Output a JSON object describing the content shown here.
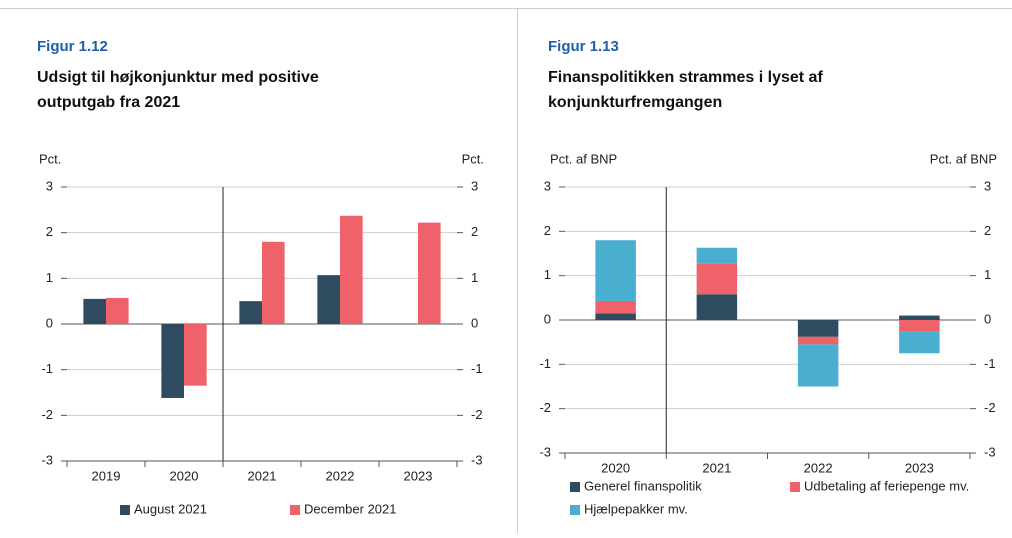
{
  "chart_data": [
    {
      "type": "bar",
      "label": "Figur 1.12",
      "title": "Udsigt til højkonjunktur med positive outputgab fra 2021",
      "ylabel": "Pct.",
      "y2label": "Pct.",
      "categories": [
        "2019",
        "2020",
        "2021",
        "2022",
        "2023"
      ],
      "series": [
        {
          "name": "August 2021",
          "color": "#2f4b5f",
          "values": [
            0.55,
            -1.62,
            0.5,
            1.07,
            null
          ]
        },
        {
          "name": "December 2021",
          "color": "#f0626a",
          "values": [
            0.57,
            -1.35,
            1.8,
            2.37,
            2.22
          ]
        }
      ],
      "ylim": [
        -3,
        3
      ],
      "yticks": [
        -3,
        -2,
        -1,
        0,
        1,
        2,
        3
      ],
      "y2lim": [
        -3,
        3
      ],
      "y2ticks": [
        -3,
        -2,
        -1,
        0,
        1,
        2,
        3
      ],
      "grid": true
    },
    {
      "type": "stacked_bar",
      "label": "Figur 1.13",
      "title": "Finanspolitikken strammes i lyset af konjunkturfremgangen",
      "ylabel": "Pct. af BNP",
      "y2label": "Pct. af BNP",
      "categories": [
        "2020",
        "2021",
        "2022",
        "2023"
      ],
      "series": [
        {
          "name": "Generel finanspolitik",
          "color": "#2f4b5f",
          "values": [
            0.15,
            0.58,
            -0.38,
            0.1
          ]
        },
        {
          "name": "Udbetaling af feriepenge mv.",
          "color": "#f0626a",
          "values": [
            0.28,
            0.7,
            -0.17,
            -0.25
          ]
        },
        {
          "name": "Hjælpepakker mv.",
          "color": "#4aaed0",
          "values": [
            1.37,
            0.35,
            -0.95,
            -0.5
          ]
        }
      ],
      "ylim": [
        -3,
        3
      ],
      "yticks": [
        -3,
        -2,
        -1,
        0,
        1,
        2,
        3
      ],
      "y2lim": [
        -3,
        3
      ],
      "y2ticks": [
        -3,
        -2,
        -1,
        0,
        1,
        2,
        3
      ],
      "grid": true
    }
  ]
}
